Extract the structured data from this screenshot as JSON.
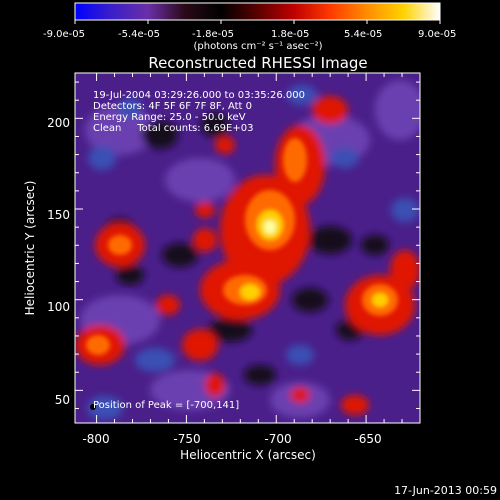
{
  "colorbar": {
    "tick_labels": [
      "-9.0e-05",
      "-5.4e-05",
      "-1.8e-05",
      "1.8e-05",
      "5.4e-05",
      "9.0e-05"
    ],
    "units_label": "(photons cm⁻² s⁻¹ asec⁻²)",
    "stops": [
      "#0000ff",
      "#3b1fc8",
      "#6a2fa8",
      "#2a0a18",
      "#000000",
      "#5a0000",
      "#c00000",
      "#ff3a00",
      "#ff8c00",
      "#ffd200",
      "#ffffff"
    ]
  },
  "title": "Reconstructed RHESSI Image",
  "info": {
    "line1": "19-Jul-2004 03:29:26.000 to 03:35:26.000",
    "line2": "Detectors: 4F 5F 6F 7F 8F, Att 0",
    "line3": "Energy Range: 25.0 - 50.0 keV",
    "line4": "Clean     Total counts: 6.69E+03"
  },
  "peak_label": "Position of Peak = [-700,141]",
  "axes": {
    "xlabel": "Heliocentric X (arcsec)",
    "ylabel": "Heliocentric Y (arcsec)",
    "x_ticks": [
      "-800",
      "-750",
      "-700",
      "-650"
    ],
    "y_ticks": [
      "50",
      "100",
      "150",
      "200"
    ],
    "xlim": [
      -812,
      -620
    ],
    "ylim": [
      32,
      225
    ]
  },
  "footer_date": "17-Jun-2013 00:59",
  "image_colors": {
    "background": "#4a1f8a",
    "purple_light": "#6b3fb0",
    "blue": "#3a4fb4",
    "dark": "#18081a",
    "red": "#e01400",
    "orange": "#ff6a00",
    "yellow": "#ffd000",
    "white": "#ffffa0"
  }
}
